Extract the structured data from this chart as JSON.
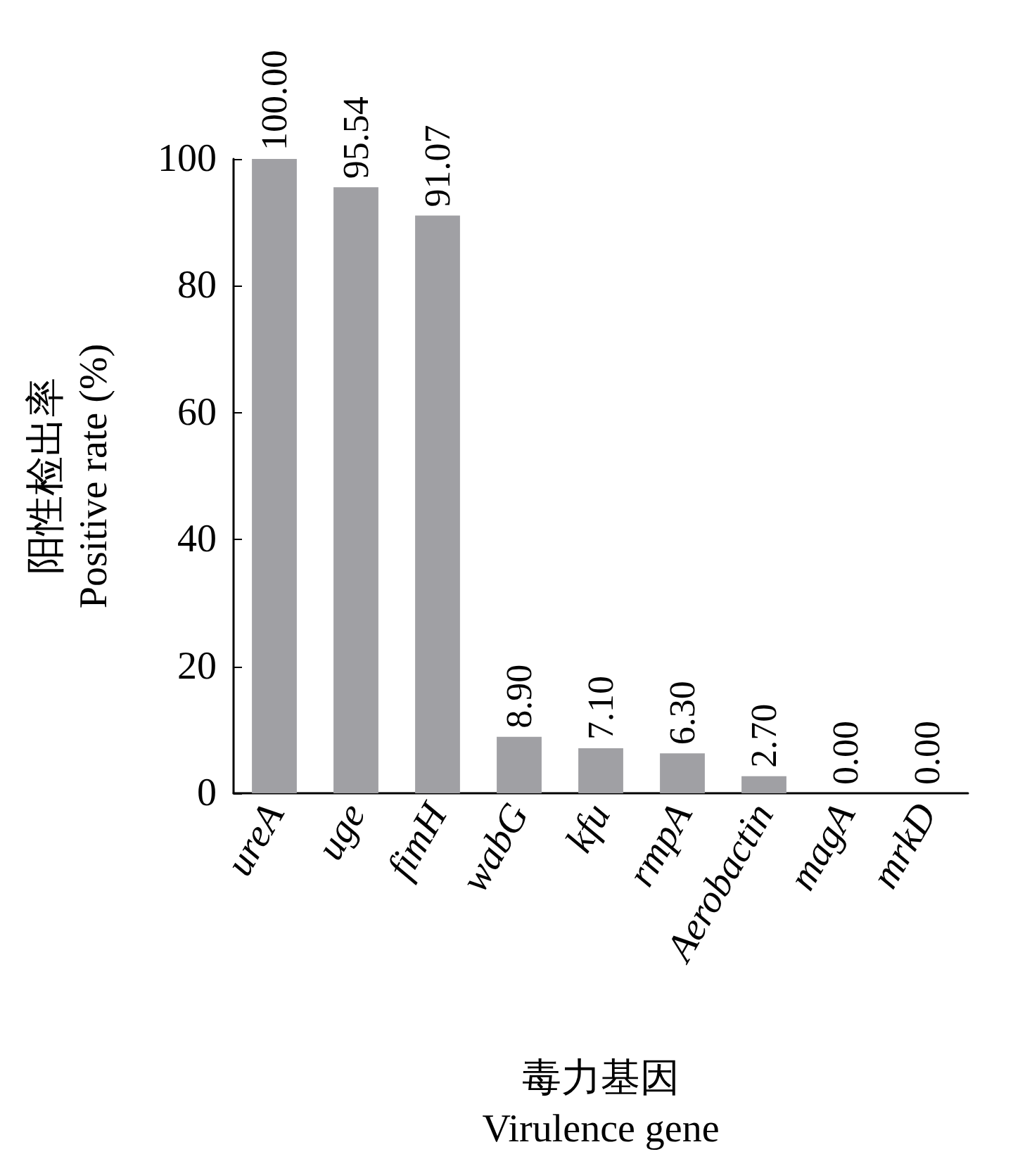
{
  "chart_data": {
    "type": "bar",
    "xlabel": "毒力基因\nVirulence gene",
    "ylabel": "阳性检出率\nPositive rate (%)",
    "categories": [
      "ureA",
      "uge",
      "fimH",
      "wabG",
      "kfu",
      "rmpA",
      "Aerobactin",
      "magA",
      "mrkD"
    ],
    "values": [
      100.0,
      95.54,
      91.07,
      8.9,
      7.1,
      6.3,
      2.7,
      0.0,
      0.0
    ],
    "value_labels": [
      "100.00",
      "95.54",
      "91.07",
      "8.90",
      "7.10",
      "6.30",
      "2.70",
      "0.00",
      "0.00"
    ],
    "color": "#a0a0a4",
    "ylim": [
      0,
      100
    ],
    "yticks": [
      0,
      20,
      40,
      60,
      80,
      100
    ],
    "grid": false
  }
}
